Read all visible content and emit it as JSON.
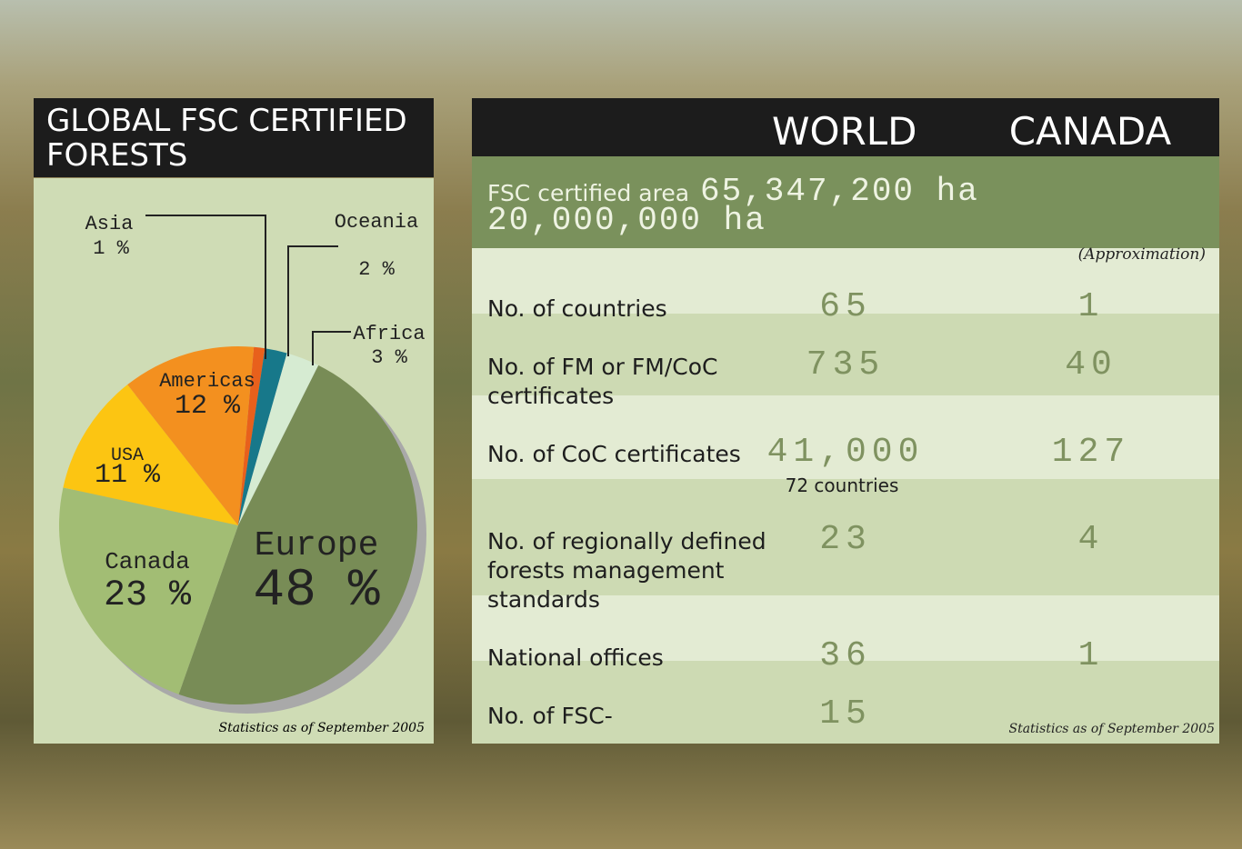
{
  "chart_data": {
    "type": "pie",
    "title": "GLOBAL FSC CERTIFIED FORESTS",
    "categories": [
      "Asia",
      "Oceania",
      "Africa",
      "Europe",
      "Canada",
      "USA",
      "Americas"
    ],
    "values": [
      1,
      2,
      3,
      48,
      23,
      11,
      12
    ],
    "value_labels": [
      "1 %",
      "2 %",
      "3 %",
      "48 %",
      "23 %",
      "11 %",
      "12 %"
    ],
    "colors": [
      "#e8601c",
      "#17788a",
      "#d6ebd2",
      "#788c56",
      "#a2bd74",
      "#fcc512",
      "#f3901f"
    ],
    "note": "Statistics as of September 2005"
  },
  "table": {
    "columns": [
      "WORLD",
      "CANADA"
    ],
    "area": {
      "label": "FSC certified area",
      "world": "65,347,200 ha",
      "canada": "20,000,000 ha",
      "note": "(Approximation)"
    },
    "rows": [
      {
        "label": "No. of countries",
        "world": "65",
        "canada": "1"
      },
      {
        "label": "No. of FM or FM/CoC certificates",
        "world": "735",
        "canada": "40"
      },
      {
        "label": "No. of CoC certificates",
        "world": "41,000",
        "world_note": "72 countries",
        "canada": "127"
      },
      {
        "label": "No. of regionally defined forests management standards",
        "world": "23",
        "canada": "4"
      },
      {
        "label": "National offices",
        "world": "36",
        "canada": "1"
      },
      {
        "label": "No. of FSC-",
        "world": "15"
      }
    ],
    "note": "Statistics as of September 2005"
  }
}
